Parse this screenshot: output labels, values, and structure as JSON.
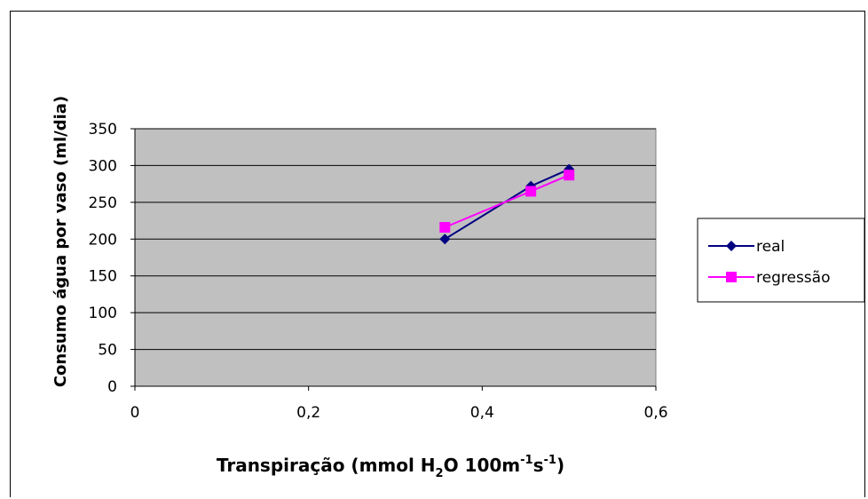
{
  "chart_data": {
    "type": "line",
    "title": "",
    "xlabel": {
      "main": "Transpiração (mmol H",
      "sub1": "2",
      "mid": "O 100m",
      "sup1": "-1",
      "mid2": "s",
      "sup2": "-1",
      "end": ")"
    },
    "ylabel": "Consumo água por vaso (ml/dia)",
    "xlim": [
      0,
      0.6
    ],
    "ylim": [
      0,
      350
    ],
    "xticks": [
      0,
      0.2,
      0.4,
      0.6
    ],
    "xtick_labels": [
      "0",
      "0,2",
      "0,4",
      "0,6"
    ],
    "yticks": [
      0,
      50,
      100,
      150,
      200,
      250,
      300,
      350
    ],
    "ytick_labels": [
      "0",
      "50",
      "100",
      "150",
      "200",
      "250",
      "300",
      "350"
    ],
    "grid": "horizontal",
    "plot_background": "#c0c0c0",
    "legend_position": "right",
    "series": [
      {
        "name": "real",
        "color": "#000080",
        "marker": "diamond",
        "x": [
          0.357,
          0.456,
          0.5
        ],
        "y": [
          200,
          272,
          295
        ]
      },
      {
        "name": "regressão",
        "color": "#ff00ff",
        "marker": "square",
        "x": [
          0.357,
          0.456,
          0.5
        ],
        "y": [
          216,
          265,
          287
        ]
      }
    ]
  }
}
